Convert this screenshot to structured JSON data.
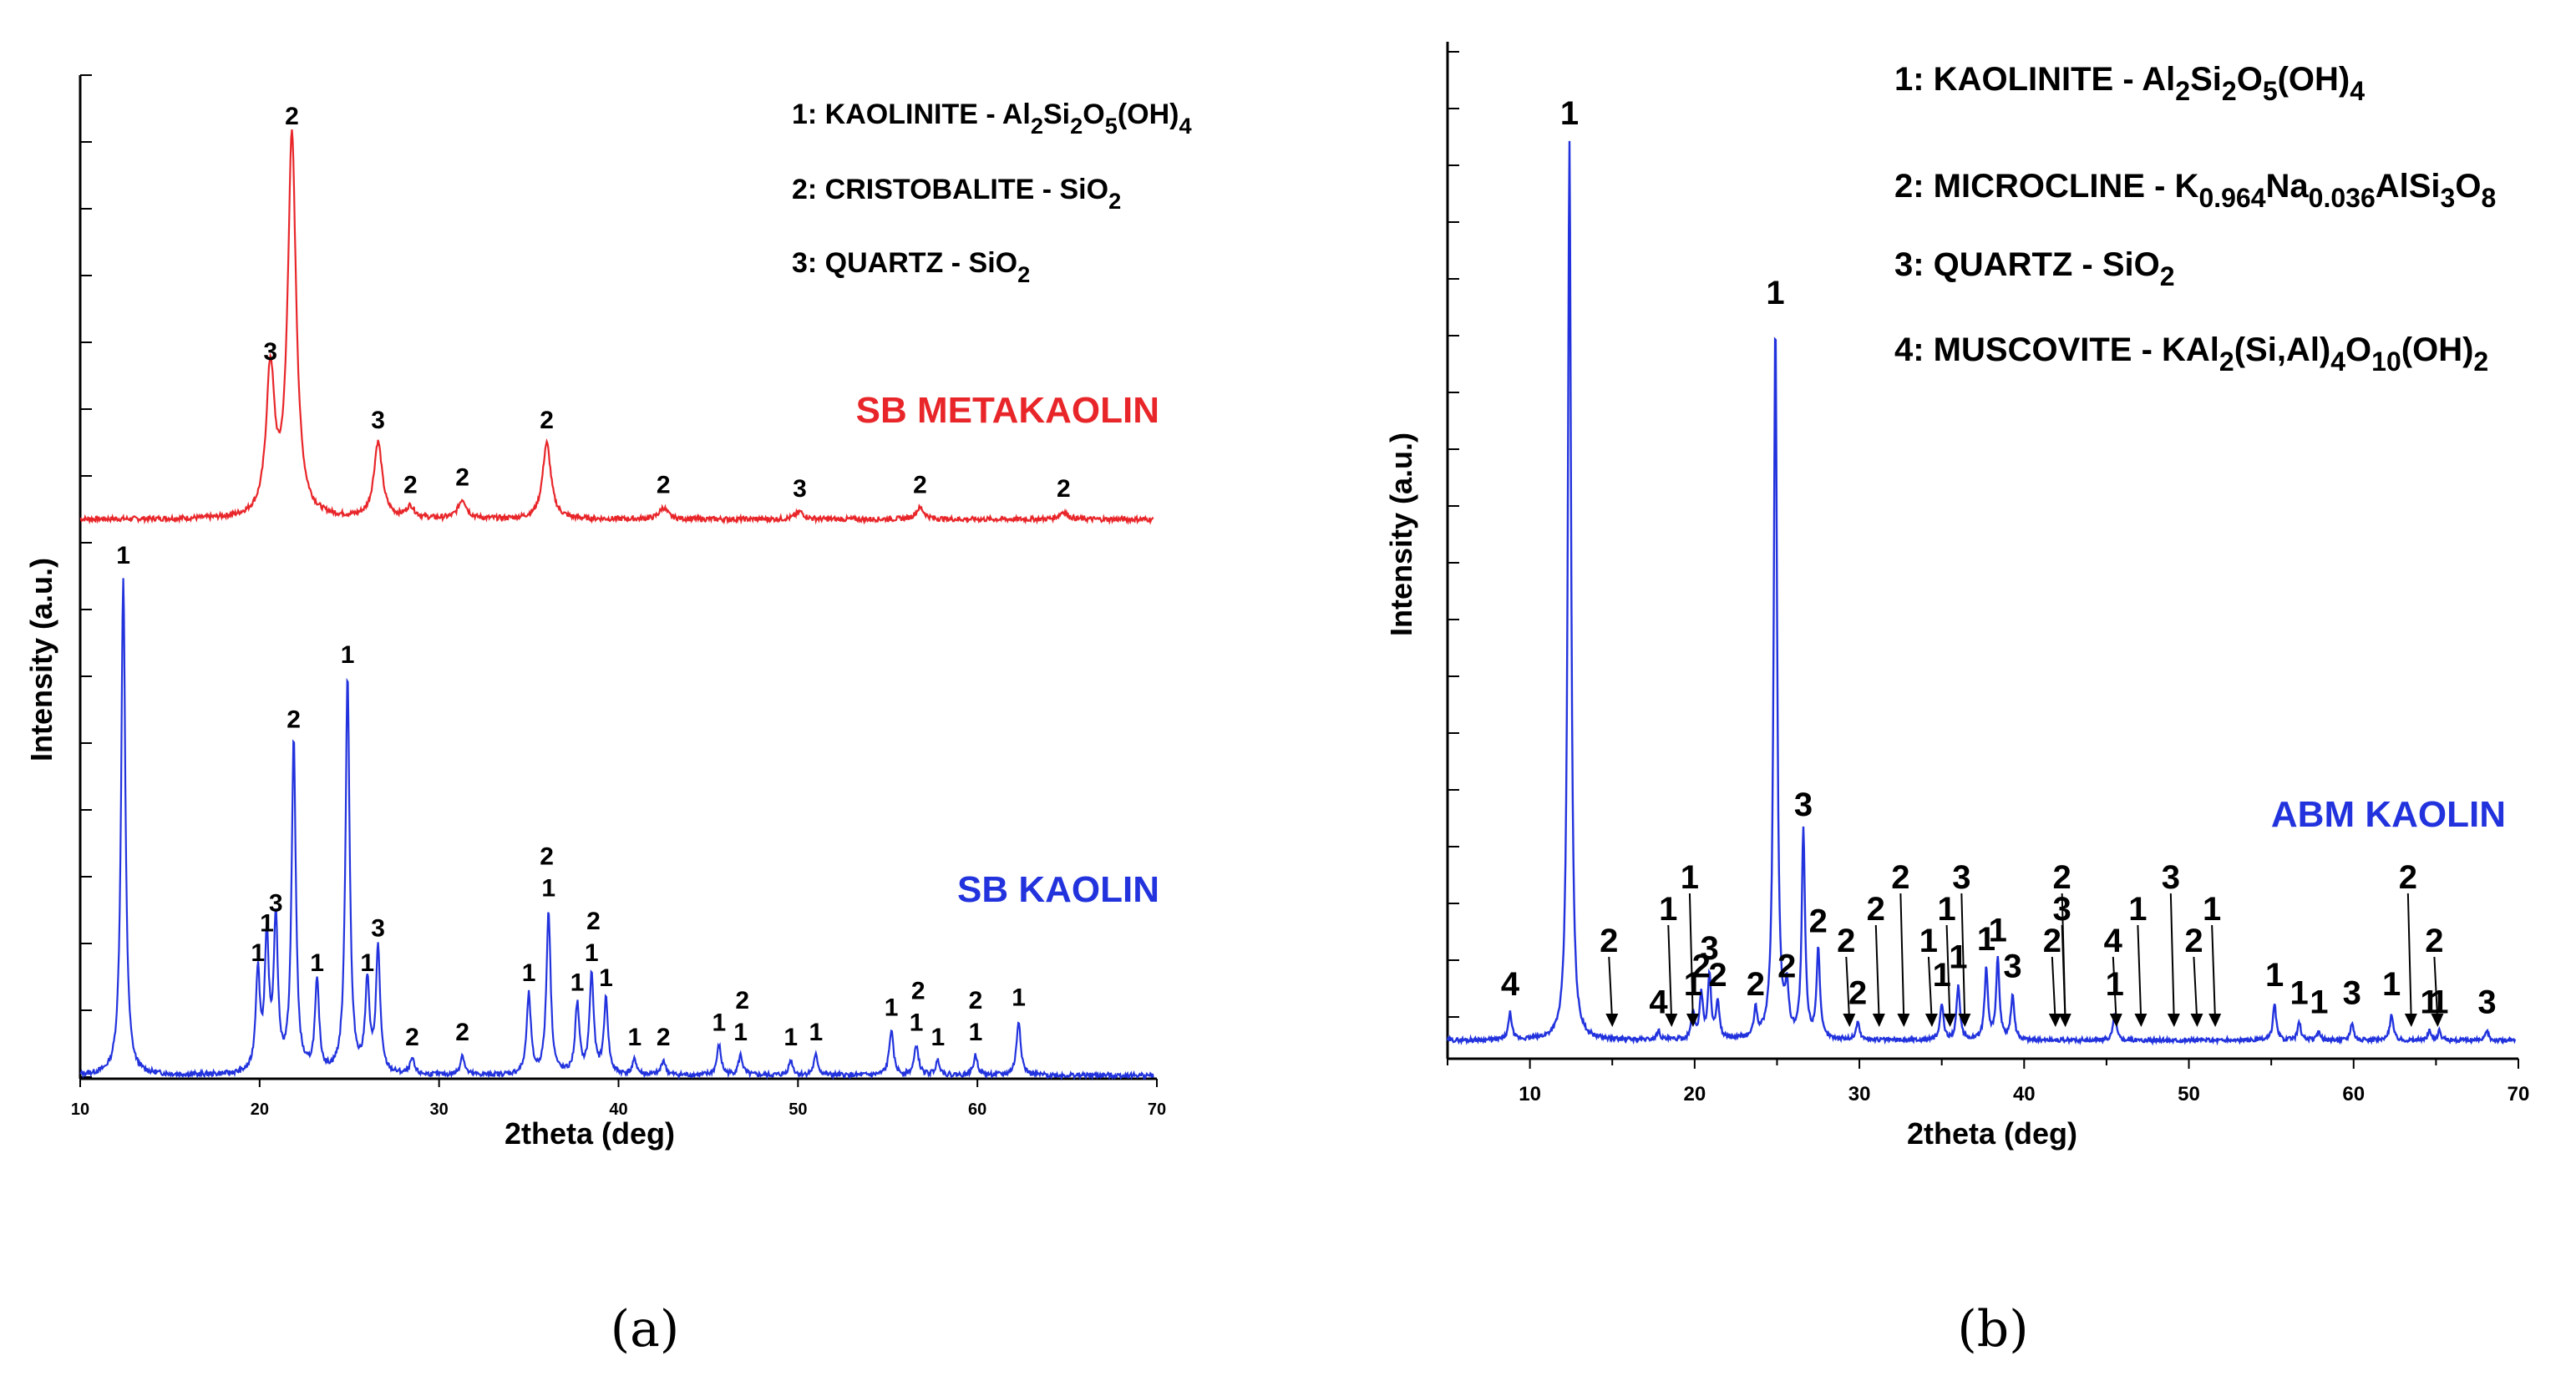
{
  "chart_data": [
    {
      "type": "line",
      "panel_label": "(a)",
      "xlabel": "2theta (deg)",
      "ylabel": "Intensity (a.u.)",
      "xlim": [
        10,
        70
      ],
      "x_ticks": [
        "10",
        "20",
        "30",
        "40",
        "50",
        "60",
        "70"
      ],
      "legend": [
        {
          "main": "1: KAOLINITE - Al",
          "parts": [
            "1: KAOLINITE - Al",
            "2",
            "Si",
            "2",
            "O",
            "5",
            "(OH)",
            "4"
          ]
        },
        {
          "main": "2: CRISTOBALITE - SiO",
          "parts": [
            "2: CRISTOBALITE - SiO",
            "2"
          ]
        },
        {
          "main": "3: QUARTZ - SiO",
          "parts": [
            "3: QUARTZ - SiO",
            "2"
          ]
        }
      ],
      "series": [
        {
          "name": "SB METAKAOLIN",
          "color": "#e8262a",
          "peaks": [
            {
              "x": 20.6,
              "h": 0.38,
              "label": "3"
            },
            {
              "x": 21.8,
              "h": 1.0,
              "label": "2"
            },
            {
              "x": 26.6,
              "h": 0.2,
              "label": "3"
            },
            {
              "x": 28.4,
              "h": 0.03,
              "label": "2"
            },
            {
              "x": 31.3,
              "h": 0.05,
              "label": "2"
            },
            {
              "x": 36.0,
              "h": 0.2,
              "label": "2"
            },
            {
              "x": 42.5,
              "h": 0.03,
              "label": "2"
            },
            {
              "x": 50.1,
              "h": 0.02,
              "label": "3"
            },
            {
              "x": 56.8,
              "h": 0.03,
              "label": "2"
            },
            {
              "x": 64.8,
              "h": 0.02,
              "label": "2"
            }
          ]
        },
        {
          "name": "SB KAOLIN",
          "color": "#2233dd",
          "peaks": [
            {
              "x": 12.4,
              "h": 1.0,
              "label": "1"
            },
            {
              "x": 19.9,
              "h": 0.2,
              "label": "1"
            },
            {
              "x": 20.4,
              "h": 0.26,
              "label": "1"
            },
            {
              "x": 20.9,
              "h": 0.3,
              "label": "3"
            },
            {
              "x": 21.9,
              "h": 0.67,
              "label": "2"
            },
            {
              "x": 23.2,
              "h": 0.18,
              "label": "1"
            },
            {
              "x": 24.9,
              "h": 0.8,
              "label": "1"
            },
            {
              "x": 26.0,
              "h": 0.18,
              "label": "1"
            },
            {
              "x": 26.6,
              "h": 0.25,
              "label": "3"
            },
            {
              "x": 28.5,
              "h": 0.03,
              "label": "2"
            },
            {
              "x": 31.3,
              "h": 0.04,
              "label": "2"
            },
            {
              "x": 35.0,
              "h": 0.16,
              "label": "1"
            },
            {
              "x": 36.1,
              "h": 0.33,
              "label": "1"
            },
            {
              "x": 37.7,
              "h": 0.14,
              "label": "1"
            },
            {
              "x": 38.5,
              "h": 0.2,
              "label": "1"
            },
            {
              "x": 39.3,
              "h": 0.15,
              "label": "1"
            },
            {
              "x": 40.9,
              "h": 0.03,
              "label": "1"
            },
            {
              "x": 42.5,
              "h": 0.03,
              "label": "2"
            },
            {
              "x": 45.6,
              "h": 0.06,
              "label": "1"
            },
            {
              "x": 46.8,
              "h": 0.04,
              "label": "1"
            },
            {
              "x": 49.6,
              "h": 0.03,
              "label": "1"
            },
            {
              "x": 51.0,
              "h": 0.04,
              "label": "1"
            },
            {
              "x": 55.2,
              "h": 0.09,
              "label": "1"
            },
            {
              "x": 56.6,
              "h": 0.06,
              "label": "1"
            },
            {
              "x": 57.8,
              "h": 0.03,
              "label": "1"
            },
            {
              "x": 59.9,
              "h": 0.04,
              "label": "1"
            },
            {
              "x": 62.3,
              "h": 0.11,
              "label": "1"
            }
          ]
        }
      ],
      "label_groups": [
        {
          "text": "2",
          "x": 36.0
        },
        {
          "text": "2",
          "x": 38.6
        },
        {
          "text": "2",
          "x": 46.9
        },
        {
          "text": "2",
          "x": 56.7
        },
        {
          "text": "2",
          "x": 59.9
        }
      ]
    },
    {
      "type": "line",
      "panel_label": "(b)",
      "xlabel": "2theta (deg)",
      "ylabel": "Intensity (a.u.)",
      "xlim": [
        5,
        70
      ],
      "x_ticks": [
        "10",
        "20",
        "30",
        "40",
        "50",
        "60",
        "70"
      ],
      "legend": [
        {
          "parts": [
            "1: KAOLINITE - Al",
            "2",
            "Si",
            "2",
            "O",
            "5",
            "(OH)",
            "4"
          ]
        },
        {
          "parts": [
            "2: MICROCLINE - K",
            "0.964",
            "Na",
            "0.036",
            "AlSi",
            "3",
            "O",
            "8"
          ]
        },
        {
          "parts": [
            "3: QUARTZ - SiO",
            "2"
          ]
        },
        {
          "parts": [
            "4: MUSCOVITE - KAl",
            "2",
            "(Si,Al)",
            "4",
            "O",
            "10",
            "(OH)",
            "2"
          ]
        }
      ],
      "series": [
        {
          "name": "ABM KAOLIN",
          "color": "#2233dd",
          "peaks": [
            {
              "x": 8.8,
              "h": 0.03,
              "label": "4"
            },
            {
              "x": 12.4,
              "h": 1.0,
              "label": "1"
            },
            {
              "x": 17.8,
              "h": 0.01,
              "label": "4"
            },
            {
              "x": 19.9,
              "h": 0.03,
              "label": "1"
            },
            {
              "x": 20.4,
              "h": 0.05,
              "label": "2"
            },
            {
              "x": 20.9,
              "h": 0.07,
              "label": "3"
            },
            {
              "x": 21.4,
              "h": 0.04,
              "label": "2"
            },
            {
              "x": 23.7,
              "h": 0.03,
              "label": "2"
            },
            {
              "x": 24.9,
              "h": 0.8,
              "label": "1"
            },
            {
              "x": 25.6,
              "h": 0.05,
              "label": "2"
            },
            {
              "x": 26.6,
              "h": 0.23,
              "label": "3"
            },
            {
              "x": 27.5,
              "h": 0.1,
              "label": "2"
            },
            {
              "x": 29.9,
              "h": 0.02,
              "label": "2"
            },
            {
              "x": 35.0,
              "h": 0.04,
              "label": "1"
            },
            {
              "x": 36.0,
              "h": 0.06,
              "label": "1"
            },
            {
              "x": 37.7,
              "h": 0.08,
              "label": "1"
            },
            {
              "x": 38.4,
              "h": 0.09,
              "label": "1"
            },
            {
              "x": 39.3,
              "h": 0.05,
              "label": "3"
            },
            {
              "x": 45.5,
              "h": 0.03,
              "label": "1"
            },
            {
              "x": 55.2,
              "h": 0.04,
              "label": "1"
            },
            {
              "x": 56.7,
              "h": 0.02,
              "label": "1"
            },
            {
              "x": 57.9,
              "h": 0.01,
              "label": "1"
            },
            {
              "x": 59.9,
              "h": 0.02,
              "label": "3"
            },
            {
              "x": 62.3,
              "h": 0.03,
              "label": "1"
            },
            {
              "x": 64.6,
              "h": 0.01,
              "label": "1"
            },
            {
              "x": 65.2,
              "h": 0.01,
              "label": "1"
            },
            {
              "x": 68.1,
              "h": 0.01,
              "label": "3"
            }
          ]
        }
      ],
      "arrow_labels": [
        {
          "text": "2",
          "x": 14.8
        },
        {
          "text": "1",
          "x": 18.4
        },
        {
          "text": "1",
          "x": 19.7
        },
        {
          "text": "2",
          "x": 29.2
        },
        {
          "text": "2",
          "x": 31.0
        },
        {
          "text": "2",
          "x": 32.5
        },
        {
          "text": "1",
          "x": 34.2
        },
        {
          "text": "1",
          "x": 35.3
        },
        {
          "text": "3",
          "x": 36.2
        },
        {
          "text": "2",
          "x": 41.7
        },
        {
          "text": "3",
          "x": 42.3
        },
        {
          "text": "2",
          "x": 42.3
        },
        {
          "text": "4",
          "x": 45.4
        },
        {
          "text": "1",
          "x": 46.9
        },
        {
          "text": "3",
          "x": 48.9
        },
        {
          "text": "2",
          "x": 50.3
        },
        {
          "text": "1",
          "x": 51.4
        },
        {
          "text": "2",
          "x": 63.3
        },
        {
          "text": "2",
          "x": 64.9
        }
      ]
    }
  ]
}
